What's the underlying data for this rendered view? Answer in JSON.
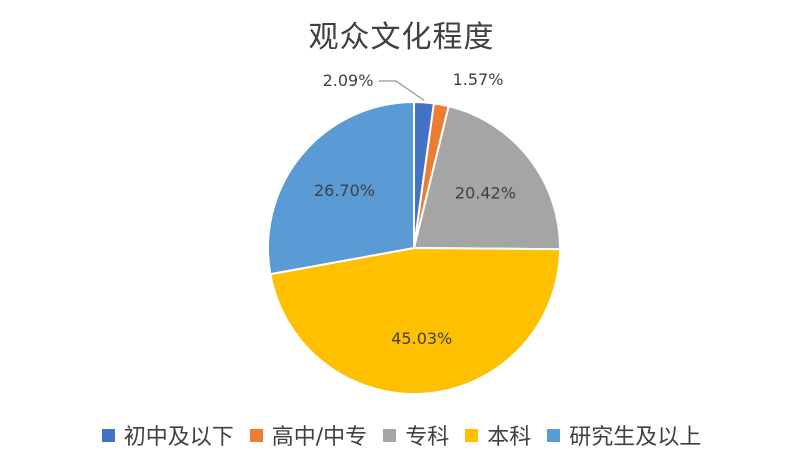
{
  "chart_data": {
    "type": "pie",
    "title": "观众文化程度",
    "legend_position": "bottom",
    "slices": [
      {
        "label": "初中及以下",
        "value": 2.09,
        "display": "2.09%",
        "color": "#4472C4"
      },
      {
        "label": "高中/中专",
        "value": 1.57,
        "display": "1.57%",
        "color": "#ED7D31"
      },
      {
        "label": "专科",
        "value": 20.42,
        "display": "20.42%",
        "color": "#A5A5A5"
      },
      {
        "label": "本科",
        "value": 45.03,
        "display": "45.03%",
        "color": "#FFC000"
      },
      {
        "label": "研究生及以上",
        "value": 26.7,
        "display": "26.70%",
        "color": "#5B9BD5"
      }
    ]
  }
}
